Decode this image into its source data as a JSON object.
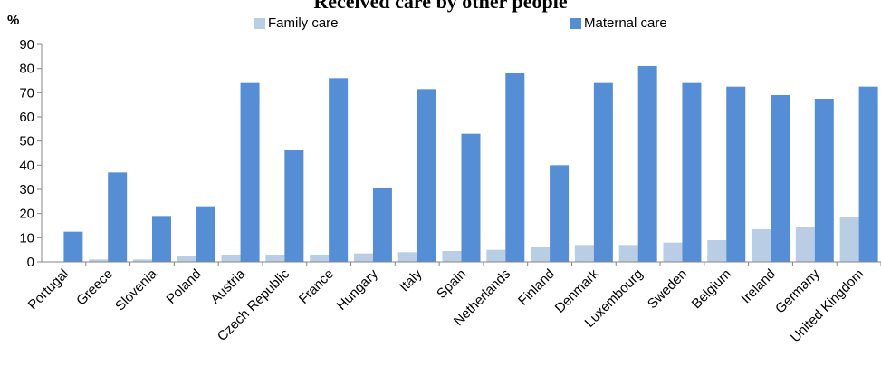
{
  "chart_data": {
    "type": "bar",
    "title": "Received care by other people",
    "ylabel": "%",
    "xlabel": "",
    "ylim": [
      0,
      90
    ],
    "yticks": [
      0,
      10,
      20,
      30,
      40,
      50,
      60,
      70,
      80,
      90
    ],
    "grid": false,
    "legend_position": "top",
    "categories": [
      "Portugal",
      "Greece",
      "Slovenia",
      "Poland",
      "Austria",
      "Czech Republic",
      "France",
      "Hungary",
      "Italy",
      "Spain",
      "Netherlands",
      "Finland",
      "Denmark",
      "Luxembourg",
      "Sweden",
      "Belgium",
      "Ireland",
      "Germany",
      "United Kingdom"
    ],
    "series": [
      {
        "name": "Family care",
        "color": "#B9CDE5",
        "values": [
          0,
          1,
          1,
          2.5,
          3,
          3,
          3,
          3.5,
          4,
          4.5,
          5,
          6,
          7,
          7,
          8,
          9,
          13.5,
          14.5,
          18.5
        ]
      },
      {
        "name": "Maternal care",
        "color": "#558ED5",
        "values": [
          12.5,
          37,
          19,
          23,
          74,
          46.5,
          76,
          30.5,
          71.5,
          53,
          78,
          40,
          74,
          81,
          74,
          72.5,
          69,
          67.5,
          72.5
        ]
      }
    ]
  }
}
